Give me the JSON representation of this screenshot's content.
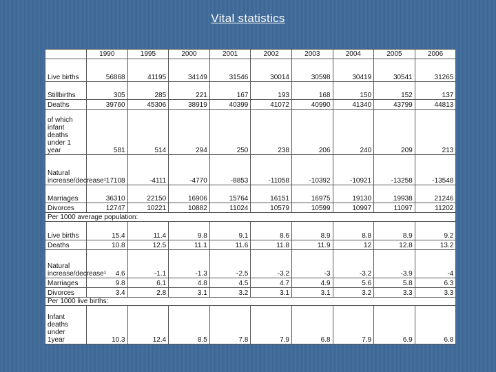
{
  "title": "Vital statistics",
  "years": [
    "1990",
    "1995",
    "2000",
    "2001",
    "2002",
    "2003",
    "2004",
    "2005",
    "2006"
  ],
  "rows": {
    "live_births": {
      "label": "Live births",
      "values": [
        "56868",
        "41195",
        "34149",
        "31546",
        "30014",
        "30598",
        "30419",
        "30541",
        "31265"
      ]
    },
    "stillbirths": {
      "label": "Stillbirths",
      "values": [
        "305",
        "285",
        "221",
        "167",
        "193",
        "168",
        "150",
        "152",
        "137"
      ]
    },
    "deaths": {
      "label": "Deaths",
      "values": [
        "39760",
        "45306",
        "38919",
        "40399",
        "41072",
        "40990",
        "41340",
        "43799",
        "44813"
      ]
    },
    "infant_deaths": {
      "label": "of which infant deaths under 1 year",
      "values": [
        "581",
        "514",
        "294",
        "250",
        "238",
        "206",
        "240",
        "209",
        "213"
      ]
    },
    "natural_increase": {
      "label": "Natural increase/decrease¹",
      "values": [
        "17108",
        "-4111",
        "-4770",
        "-8853",
        "-11058",
        "-10392",
        "-10921",
        "-13258",
        "-13548"
      ]
    },
    "marriages": {
      "label": "Marriages",
      "values": [
        "36310",
        "22150",
        "16906",
        "15764",
        "16151",
        "16975",
        "19130",
        "19938",
        "21246"
      ]
    },
    "divorces": {
      "label": "Divorces",
      "values": [
        "12747",
        "10221",
        "10882",
        "11024",
        "10579",
        "10599",
        "10997",
        "11097",
        "11202"
      ]
    },
    "per1000_pop_header": "Per 1000 average population:",
    "rate_live_births": {
      "label": "Live births",
      "values": [
        "15.4",
        "11.4",
        "9.8",
        "9.1",
        "8.6",
        "8.9",
        "8.8",
        "8.9",
        "9.2"
      ]
    },
    "rate_deaths": {
      "label": "Deaths",
      "values": [
        "10.8",
        "12.5",
        "11.1",
        "11.6",
        "11.8",
        "11.9",
        "12",
        "12.8",
        "13.2"
      ]
    },
    "rate_natural_increase": {
      "label": "Natural increase/decrease¹",
      "values": [
        "4.6",
        "-1.1",
        "-1.3",
        "-2.5",
        "-3.2",
        "-3",
        "-3.2",
        "-3.9",
        "-4"
      ]
    },
    "rate_marriages": {
      "label": "Marriages",
      "values": [
        "9.8",
        "6.1",
        "4.8",
        "4.5",
        "4.7",
        "4.9",
        "5.6",
        "5.8",
        "6.3"
      ]
    },
    "rate_divorces": {
      "label": "Divorces",
      "values": [
        "3.4",
        "2.8",
        "3.1",
        "3.2",
        "3.1",
        "3.1",
        "3.2",
        "3.3",
        "3.3"
      ]
    },
    "per1000_births_header": "Per 1000 live births:",
    "rate_infant_deaths": {
      "label": "Infant deaths under 1year",
      "values": [
        "10.3",
        "12.4",
        "8.5",
        "7.8",
        "7.9",
        "6.8",
        "7.9",
        "6.9",
        "6.8"
      ]
    }
  }
}
